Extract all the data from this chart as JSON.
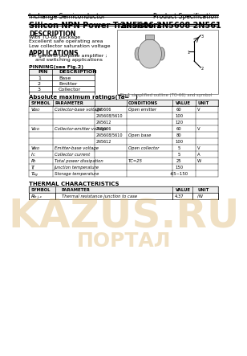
{
  "company": "Inchange Semiconductor",
  "product_spec": "Product Specification",
  "title": "Silicon NPN Power Transistors",
  "part_numbers": "2N5606 2N5608 2N5610 2N5612",
  "description_title": "DESCRIPTION",
  "description_lines": [
    "With TO-66 package",
    "Excellent safe operating area",
    "Low collector saturation voltage"
  ],
  "applications_title": "APPLICATIONS",
  "applications_lines": [
    "For general purpose amplifier ;",
    "    and switching applications"
  ],
  "pinning_title": "PINNING(see Fig.2)",
  "pinning_cols": [
    "PIN",
    "DESCRIPTION"
  ],
  "pinning_rows": [
    [
      "1",
      "Base"
    ],
    [
      "2",
      "Emitter"
    ],
    [
      "3",
      "Collector"
    ]
  ],
  "fig_caption": "Fig.1 simplified outline (TO-66) and symbol",
  "abs_title": "Absolute maximum ratings(Ta=   )",
  "bg_color": "#ffffff",
  "watermark_color": "#d4a855",
  "watermark_text": "KAZUS.RU",
  "watermark_subtext": "ПОРТАЛ",
  "thermal_title": "THERMAL CHARACTERISTICS",
  "thermal_rows": [
    [
      "Rth j-c",
      "Thermal resistance junction to case",
      "4.37",
      "/W"
    ]
  ]
}
